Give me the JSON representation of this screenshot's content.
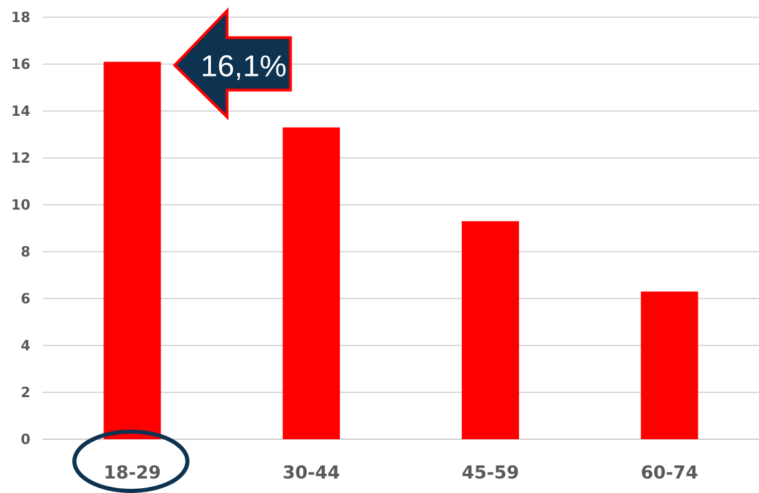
{
  "chart_data": {
    "type": "bar",
    "categories": [
      "18-29",
      "30-44",
      "45-59",
      "60-74"
    ],
    "values": [
      16.1,
      13.3,
      9.3,
      6.3
    ],
    "title": "",
    "xlabel": "",
    "ylabel": "",
    "ylim": [
      0,
      18
    ],
    "yticks": [
      "0",
      "2",
      "4",
      "6",
      "8",
      "10",
      "12",
      "14",
      "16",
      "18"
    ],
    "grid": true,
    "bar_color": "#ff0000",
    "highlight": {
      "category_index": 0,
      "callout_label": "16,1%",
      "callout_fill": "#0d3350",
      "callout_border": "#ff0000",
      "ellipse_color": "#0d3350"
    }
  }
}
